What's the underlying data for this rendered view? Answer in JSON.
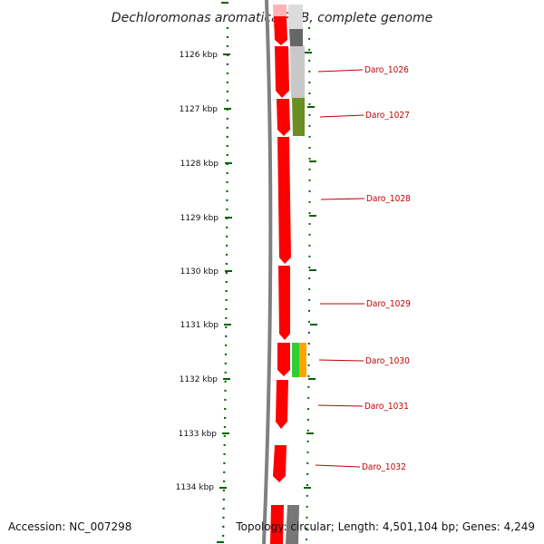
{
  "title": "Dechloromonas aromatica RCB, complete genome",
  "footer": {
    "accession": "Accession: NC_007298",
    "topology": "Topology: circular; Length: 4,501,104 bp; Genes: 4,249"
  },
  "colors": {
    "gene_red": "#ff0000",
    "scale_green": "#006400",
    "label_red": "#c00000",
    "backbone": "#808080",
    "band_olive": "#6b8e23",
    "band_green": "#32cd32",
    "band_orange": "#ffa500",
    "band_dark": "#666666",
    "band_light": "#c8c8c8"
  },
  "scale": {
    "labels": [
      "1126 kbp",
      "1127 kbp",
      "1128 kbp",
      "1129 kbp",
      "1130 kbp",
      "1131 kbp",
      "1132 kbp",
      "1133 kbp",
      "1134 kbp"
    ]
  },
  "genes": {
    "labels": [
      "Daro_1026",
      "Daro_1027",
      "Daro_1028",
      "Daro_1029",
      "Daro_1030",
      "Daro_1031",
      "Daro_1032"
    ]
  }
}
